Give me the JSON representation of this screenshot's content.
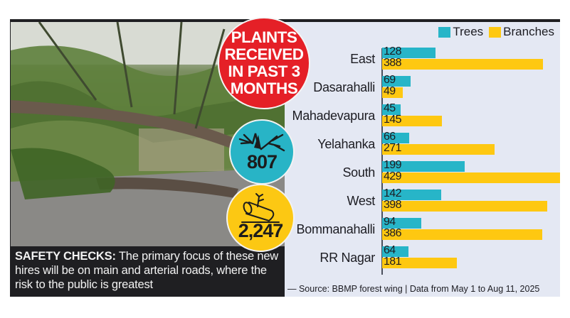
{
  "badges": {
    "headline": "PLAINTS RECEIVED IN PAST 3 MONTHS",
    "headline_lines": [
      "PLAINTS",
      "RECEIVED",
      "IN PAST 3",
      "MONTHS"
    ],
    "trees_total": "807",
    "trees_icon": "fallen-tree-icon",
    "branches_total": "2,247",
    "branches_icon": "log-branch-icon"
  },
  "caption": {
    "lead": "SAFETY CHECKS:",
    "text": " The primary focus of these new hires will be on main and arterial roads, where the risk to the public is greatest"
  },
  "legend": {
    "trees": "Trees",
    "branches": "Branches"
  },
  "source": "— Source: BBMP forest wing | Data from May 1 to Aug 11, 2025",
  "colors": {
    "trees": "#27b5c8",
    "branches": "#fec811",
    "headline_badge": "#e52027",
    "panel_bg": "#e4e8f3"
  },
  "chart_data": {
    "type": "bar",
    "orientation": "horizontal",
    "title": "Complaints received in past 3 months",
    "categories": [
      "East",
      "Dasarahalli",
      "Mahadevapura",
      "Yelahanka",
      "South",
      "West",
      "Bommanahalli",
      "RR Nagar"
    ],
    "series": [
      {
        "name": "Trees",
        "color": "#27b5c8",
        "values": [
          128,
          69,
          45,
          66,
          199,
          142,
          94,
          64
        ]
      },
      {
        "name": "Branches",
        "color": "#fec811",
        "values": [
          388,
          49,
          145,
          271,
          429,
          398,
          386,
          181
        ]
      }
    ],
    "totals": {
      "Trees": 807,
      "Branches": 2247
    },
    "xlabel": "",
    "ylabel": "",
    "data_labels": true,
    "grid": false,
    "legend_position": "top-right",
    "source": "BBMP forest wing | Data from May 1 to Aug 11, 2025"
  }
}
